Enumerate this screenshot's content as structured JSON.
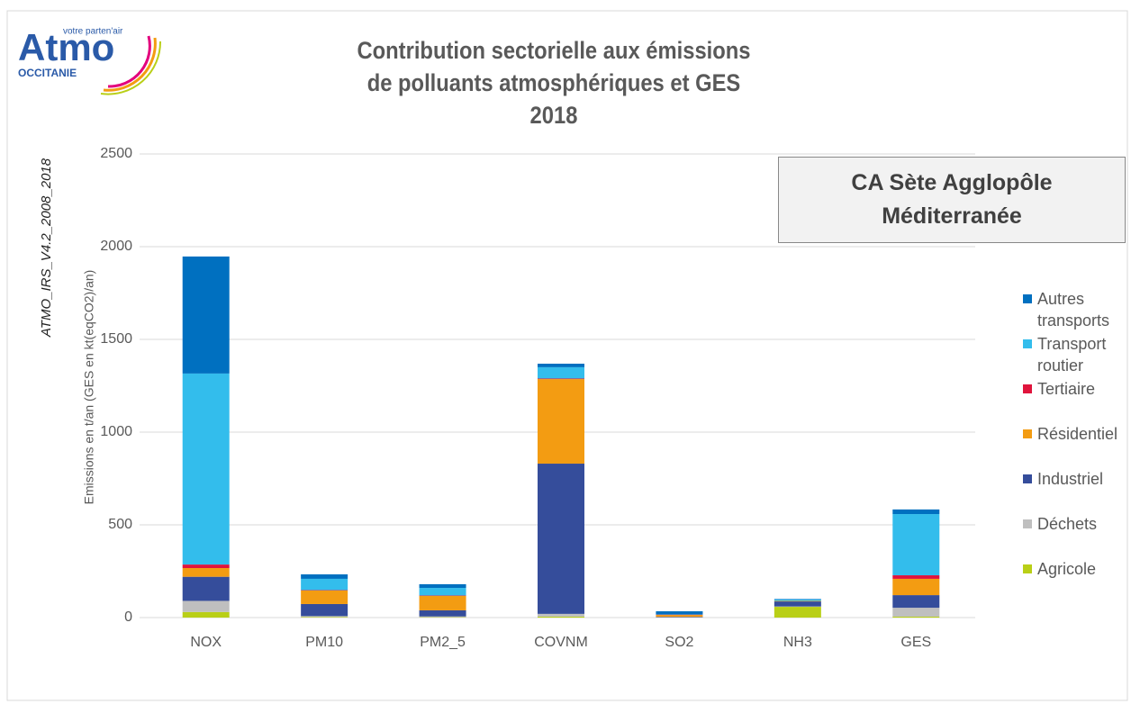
{
  "logo": {
    "name": "Atmo",
    "tagline": "votre parten'air",
    "region": "OCCITANIE"
  },
  "source": "ATMO_IRS_V4.2_2008_2018",
  "chart_data": {
    "type": "bar",
    "stacked": true,
    "title": "Contribution sectorielle aux émissions de polluants atmosphériques et GES",
    "subtitle": "2018",
    "annotation": "CA Sète Agglopôle Méditerranée",
    "y_label": "Emissions en t/an (GES en kt(eqCO2)/an)",
    "categories": [
      "NOX",
      "PM10",
      "PM2_5",
      "COVNM",
      "SO2",
      "NH3",
      "GES"
    ],
    "series": [
      {
        "name": "Agricole",
        "color": "#b9cf17",
        "values": [
          30,
          3,
          2,
          5,
          0,
          58,
          5
        ]
      },
      {
        "name": "Déchets",
        "color": "#bfbfbf",
        "values": [
          60,
          5,
          4,
          15,
          1,
          2,
          48
        ]
      },
      {
        "name": "Industriel",
        "color": "#354d9b",
        "values": [
          130,
          65,
          33,
          810,
          3,
          27,
          68
        ]
      },
      {
        "name": "Résidentiel",
        "color": "#f39c12",
        "values": [
          47,
          73,
          78,
          456,
          10,
          3,
          88
        ]
      },
      {
        "name": "Tertiaire",
        "color": "#e0143c",
        "values": [
          19,
          2,
          2,
          3,
          2,
          0,
          19
        ]
      },
      {
        "name": "Transport routier",
        "color": "#33bdec",
        "values": [
          1030,
          61,
          41,
          61,
          1,
          7,
          330
        ]
      },
      {
        "name": "Autres transports",
        "color": "#0070c0",
        "values": [
          631,
          24,
          20,
          19,
          17,
          3,
          25
        ]
      }
    ],
    "ylim": [
      0,
      2500
    ],
    "yticks": [
      0,
      500,
      1000,
      1500,
      2000,
      2500
    ],
    "grid": true,
    "legend": "right"
  }
}
